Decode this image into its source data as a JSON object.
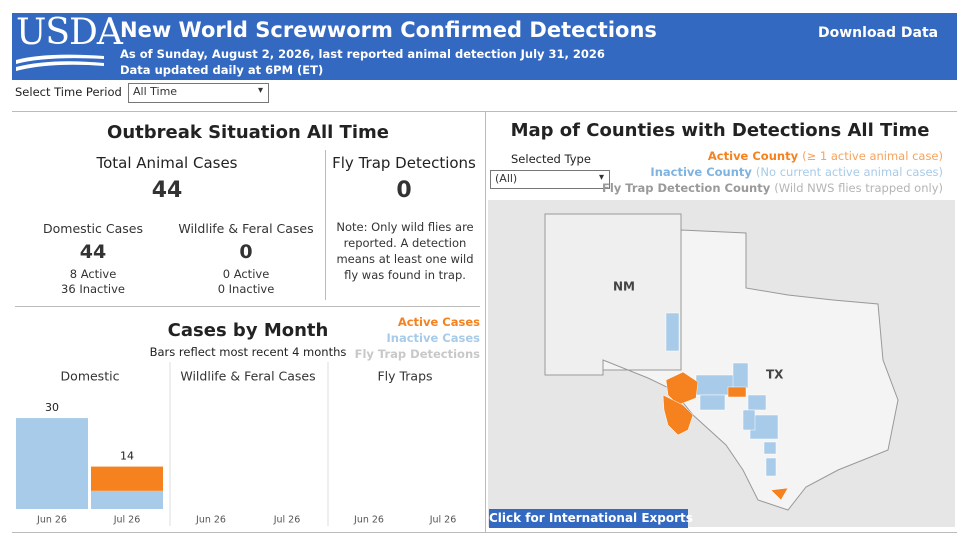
{
  "header": {
    "logo": "USDA",
    "title": "New World Screwworm Confirmed Detections",
    "subtitle": "As of Sunday, August 2, 2026, last reported animal detection July 31, 2026",
    "update_note": "Data updated daily at 6PM (ET)",
    "download": "Download Data"
  },
  "time_filter": {
    "label": "Select Time Period",
    "value": "All Time"
  },
  "situation": {
    "title": "Outbreak Situation All Time",
    "total_label": "Total Animal Cases",
    "total": 44,
    "domestic_label": "Domestic Cases",
    "domestic": 44,
    "domestic_active": "8 Active",
    "domestic_inactive": "36 Inactive",
    "wildlife_label": "Wildlife & Feral Cases",
    "wildlife": 0,
    "wildlife_active": "0 Active",
    "wildlife_inactive": "0 Inactive",
    "trap_label": "Fly Trap Detections",
    "trap": 0,
    "trap_note": "Note: Only wild flies are reported. A detection means at least one wild fly was found in trap."
  },
  "chart_data": {
    "type": "bar",
    "stacked": true,
    "title": "Cases by Month",
    "subtitle": "Bars reflect most recent 4 months",
    "legend": [
      {
        "name": "Active Cases",
        "color": "#f5821f"
      },
      {
        "name": "Inactive Cases",
        "color": "#a7cbe8"
      },
      {
        "name": "Fly Trap Detections",
        "color": "#c8c8c8"
      }
    ],
    "ylim": [
      0,
      33
    ],
    "panels": [
      {
        "name": "Domestic",
        "categories": [
          "Jun 26",
          "Jul 26"
        ],
        "series": [
          {
            "values": [
              0,
              8
            ]
          },
          {
            "values": [
              30,
              6
            ]
          }
        ],
        "totals": [
          30,
          14
        ]
      },
      {
        "name": "Wildlife & Feral Cases",
        "categories": [
          "Jun 26",
          "Jul 26"
        ],
        "series": [
          {
            "values": [
              0,
              0
            ]
          },
          {
            "values": [
              0,
              0
            ]
          }
        ]
      },
      {
        "name": "Fly Traps",
        "categories": [
          "Jun 26",
          "Jul 26"
        ],
        "series": [
          {
            "values": [
              0,
              0
            ]
          }
        ]
      }
    ]
  },
  "map": {
    "title": "Map of Counties with Detections All Time",
    "type_label": "Selected Type",
    "type_value": "(All)",
    "legend": [
      {
        "label": "Active County",
        "note": "(≥ 1 active animal case)",
        "color": "#f5821f",
        "note_color": "#f7a35c"
      },
      {
        "label": "Inactive County",
        "note": "(No current active animal cases)",
        "color": "#7fb3e0",
        "note_color": "#a7cbe8"
      },
      {
        "label": "Fly Trap Detection County",
        "note": "(Wild NWS flies trapped only)",
        "color": "#9a9a9a",
        "note_color": "#b4b4b4"
      }
    ],
    "labels": [
      "NM",
      "TX"
    ],
    "button": "Click for International Exports"
  }
}
